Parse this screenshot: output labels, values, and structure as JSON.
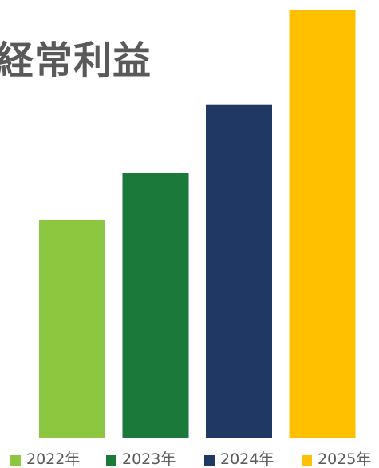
{
  "chart_data": {
    "type": "bar",
    "title": "経常利益",
    "xlabel": "",
    "ylabel": "",
    "categories": [
      "2022年",
      "2023年",
      "2024年",
      "2025年"
    ],
    "values": [
      51,
      62,
      78,
      100
    ],
    "value_unit": "relative bar height (tallest = 100); no axis or data labels are printed",
    "ylim": [
      0,
      100
    ],
    "grid": false,
    "legend": "bottom",
    "series": [
      {
        "name": "2022年",
        "value": 51,
        "color": "#8DC63F"
      },
      {
        "name": "2023年",
        "value": 62,
        "color": "#1B7A3A"
      },
      {
        "name": "2024年",
        "value": 78,
        "color": "#1F3864"
      },
      {
        "name": "2025年",
        "value": 100,
        "color": "#FFC000"
      }
    ]
  }
}
